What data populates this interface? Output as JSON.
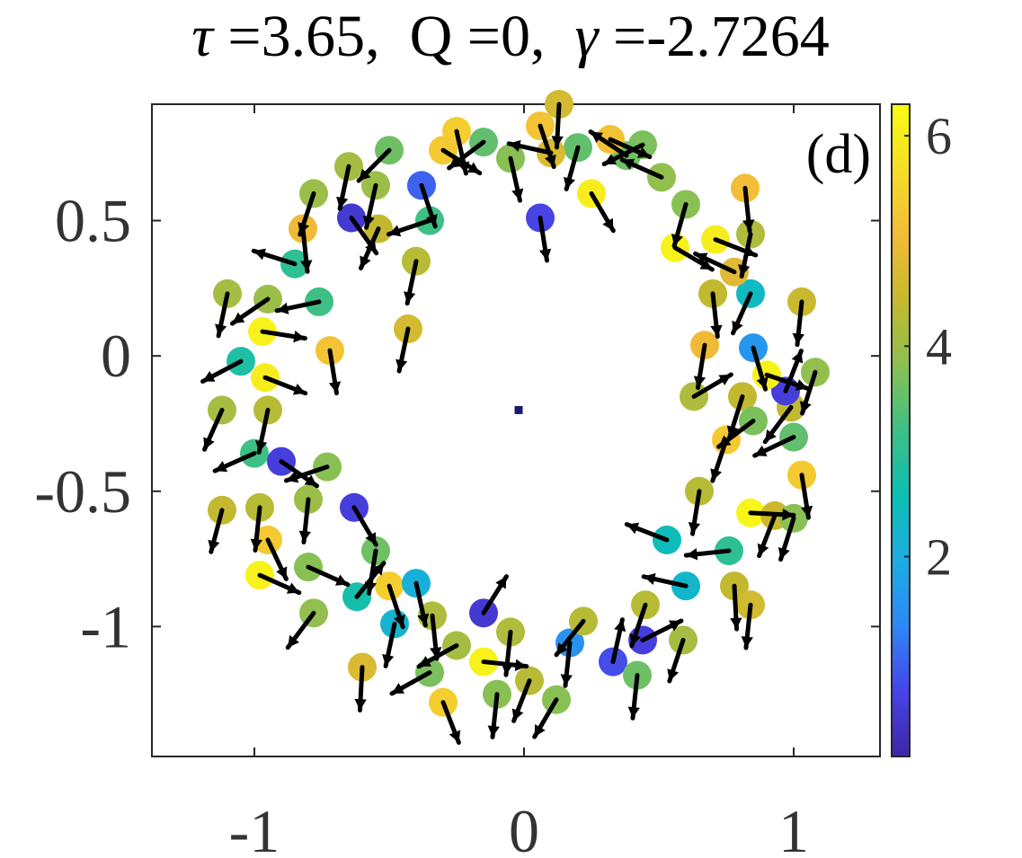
{
  "title": {
    "tau_symbol": "τ",
    "tau_text": " =3.65,  Q =0,  ",
    "gamma_symbol": "γ",
    "gamma_text": " =-2.7264"
  },
  "panel_label": "(d)",
  "colorbar": {
    "min": 0.1,
    "max": 6.3,
    "ticks": [
      2,
      4,
      6
    ],
    "tick_labels": [
      "2",
      "4",
      "6"
    ],
    "colormap": [
      "#3e26a8",
      "#4744e7",
      "#2e87f7",
      "#1cace2",
      "#0cbfb4",
      "#3ebf86",
      "#8ac052",
      "#c6b92e",
      "#f3bb38",
      "#f5de27",
      "#f9fb15"
    ]
  },
  "chart_data": {
    "type": "scatter",
    "title": "τ =3.65,  Q =0,  γ =-2.7264",
    "xlabel": "",
    "ylabel": "",
    "xlim": [
      -1.38,
      1.32
    ],
    "ylim": [
      -1.48,
      0.93
    ],
    "xticks": [
      -1,
      0,
      1
    ],
    "xtick_labels": [
      "-1",
      "0",
      "1"
    ],
    "yticks": [
      -1,
      -0.5,
      0,
      0.5
    ],
    "ytick_labels": [
      "-1",
      "-0.5",
      "0",
      "0.5"
    ],
    "grid": false,
    "color_scale": [
      0.1,
      6.3
    ],
    "arrow_scale": 0.16,
    "center_marker": {
      "x": -0.02,
      "y": -0.2
    },
    "series": [
      {
        "marker": "circle",
        "points": [
          {
            "x": 0.85,
            "y": 0.03,
            "c": 1.6,
            "u": 0.25,
            "v": -0.85
          },
          {
            "x": 0.84,
            "y": 0.23,
            "c": 2.4,
            "u": -0.4,
            "v": -0.9
          },
          {
            "x": 0.84,
            "y": 0.45,
            "c": 4.2,
            "u": -0.2,
            "v": -0.95
          },
          {
            "x": 0.82,
            "y": 0.62,
            "c": 5.1,
            "u": 0.1,
            "v": -0.95
          },
          {
            "x": 0.78,
            "y": 0.31,
            "c": 4.8,
            "u": -0.85,
            "v": 0.4
          },
          {
            "x": 0.71,
            "y": 0.43,
            "c": 6.0,
            "u": 0.9,
            "v": -0.35
          },
          {
            "x": 0.7,
            "y": 0.23,
            "c": 4.4,
            "u": 0.1,
            "v": -0.9
          },
          {
            "x": 0.67,
            "y": 0.04,
            "c": 5.0,
            "u": -0.15,
            "v": -0.95
          },
          {
            "x": 0.63,
            "y": -0.15,
            "c": 4.2,
            "u": 0.85,
            "v": 0.5
          },
          {
            "x": 0.56,
            "y": 0.4,
            "c": 6.1,
            "u": 0.85,
            "v": -0.5
          },
          {
            "x": 0.6,
            "y": 0.56,
            "c": 3.8,
            "u": -0.25,
            "v": -0.9
          },
          {
            "x": 0.51,
            "y": 0.66,
            "c": 3.9,
            "u": -0.9,
            "v": 0.4
          },
          {
            "x": 0.44,
            "y": 0.78,
            "c": 3.7,
            "u": -0.9,
            "v": -0.45
          },
          {
            "x": 0.38,
            "y": 0.74,
            "c": 3.6,
            "u": -0.9,
            "v": 0.6
          },
          {
            "x": 0.32,
            "y": 0.8,
            "c": 5.2,
            "u": 0.9,
            "v": -0.4
          },
          {
            "x": 0.2,
            "y": 0.77,
            "c": 3.5,
            "u": -0.25,
            "v": -0.9
          },
          {
            "x": 0.13,
            "y": 0.93,
            "c": 4.6,
            "u": -0.05,
            "v": -0.95
          },
          {
            "x": 0.06,
            "y": 0.85,
            "c": 5.2,
            "u": 0.3,
            "v": -0.9
          },
          {
            "x": 0.1,
            "y": 0.75,
            "c": 4.7,
            "u": -0.9,
            "v": 0.2
          },
          {
            "x": -0.05,
            "y": 0.73,
            "c": 3.8,
            "u": 0.2,
            "v": -0.9
          },
          {
            "x": 0.06,
            "y": 0.51,
            "c": 0.7,
            "u": 0.15,
            "v": -0.95
          },
          {
            "x": 0.25,
            "y": 0.6,
            "c": 6.0,
            "u": 0.5,
            "v": -0.85
          },
          {
            "x": -0.15,
            "y": 0.79,
            "c": 3.5,
            "u": -0.8,
            "v": -0.6
          },
          {
            "x": -0.25,
            "y": 0.83,
            "c": 5.4,
            "u": 0.2,
            "v": -0.9
          },
          {
            "x": -0.3,
            "y": 0.76,
            "c": 5.3,
            "u": 0.8,
            "v": -0.5
          },
          {
            "x": -0.38,
            "y": 0.63,
            "c": 1.0,
            "u": 0.3,
            "v": -0.9
          },
          {
            "x": -0.35,
            "y": 0.5,
            "c": 3.2,
            "u": -0.9,
            "v": -0.3
          },
          {
            "x": -0.5,
            "y": 0.76,
            "c": 3.6,
            "u": -0.7,
            "v": -0.7
          },
          {
            "x": -0.55,
            "y": 0.63,
            "c": 4.0,
            "u": -0.2,
            "v": -0.9
          },
          {
            "x": -0.65,
            "y": 0.7,
            "c": 4.1,
            "u": -0.2,
            "v": -0.95
          },
          {
            "x": -0.78,
            "y": 0.6,
            "c": 4.0,
            "u": -0.3,
            "v": -0.9
          },
          {
            "x": -0.64,
            "y": 0.51,
            "c": 0.5,
            "u": 0.6,
            "v": -0.85
          },
          {
            "x": -0.54,
            "y": 0.47,
            "c": 4.4,
            "u": -0.4,
            "v": -0.9
          },
          {
            "x": -0.82,
            "y": 0.47,
            "c": 5.0,
            "u": 0.1,
            "v": -0.95
          },
          {
            "x": -0.85,
            "y": 0.34,
            "c": 3.0,
            "u": -0.95,
            "v": 0.3
          },
          {
            "x": -1.1,
            "y": 0.23,
            "c": 4.1,
            "u": -0.2,
            "v": -0.95
          },
          {
            "x": -0.95,
            "y": 0.21,
            "c": 4.0,
            "u": -0.8,
            "v": -0.55
          },
          {
            "x": -0.76,
            "y": 0.2,
            "c": 3.2,
            "u": -0.95,
            "v": -0.2
          },
          {
            "x": -0.97,
            "y": 0.09,
            "c": 6.1,
            "u": 0.95,
            "v": -0.15
          },
          {
            "x": -1.05,
            "y": -0.02,
            "c": 2.8,
            "u": -0.95,
            "v": -0.5
          },
          {
            "x": -0.96,
            "y": -0.08,
            "c": 6.0,
            "u": 0.9,
            "v": -0.35
          },
          {
            "x": -1.12,
            "y": -0.2,
            "c": 4.1,
            "u": -0.4,
            "v": -0.9
          },
          {
            "x": -0.95,
            "y": -0.2,
            "c": 4.3,
            "u": -0.2,
            "v": -0.95
          },
          {
            "x": -1.0,
            "y": -0.36,
            "c": 3.2,
            "u": -0.9,
            "v": -0.4
          },
          {
            "x": -0.9,
            "y": -0.39,
            "c": 0.6,
            "u": 0.8,
            "v": -0.55
          },
          {
            "x": -0.73,
            "y": -0.41,
            "c": 3.8,
            "u": -0.9,
            "v": -0.3
          },
          {
            "x": -1.12,
            "y": -0.57,
            "c": 4.4,
            "u": -0.25,
            "v": -0.95
          },
          {
            "x": -0.98,
            "y": -0.56,
            "c": 4.3,
            "u": -0.1,
            "v": -0.95
          },
          {
            "x": -0.95,
            "y": -0.68,
            "c": 5.3,
            "u": 0.4,
            "v": -0.85
          },
          {
            "x": -0.98,
            "y": -0.81,
            "c": 6.1,
            "u": 0.9,
            "v": -0.4
          },
          {
            "x": -0.8,
            "y": -0.53,
            "c": 4.0,
            "u": -0.1,
            "v": -0.95
          },
          {
            "x": -0.8,
            "y": -0.78,
            "c": 3.8,
            "u": 0.9,
            "v": -0.4
          },
          {
            "x": -0.78,
            "y": -0.95,
            "c": 3.9,
            "u": -0.6,
            "v": -0.8
          },
          {
            "x": -0.63,
            "y": -0.56,
            "c": 0.6,
            "u": 0.5,
            "v": -0.85
          },
          {
            "x": -0.62,
            "y": -0.89,
            "c": 2.7,
            "u": 0.6,
            "v": 0.75
          },
          {
            "x": -0.55,
            "y": -0.72,
            "c": 3.6,
            "u": -0.15,
            "v": -0.95
          },
          {
            "x": -0.5,
            "y": -0.85,
            "c": 5.4,
            "u": 0.3,
            "v": -0.9
          },
          {
            "x": -0.48,
            "y": -0.99,
            "c": 2.2,
            "u": -0.2,
            "v": -0.95
          },
          {
            "x": -0.4,
            "y": -0.84,
            "c": 2.1,
            "u": 0.2,
            "v": -0.9
          },
          {
            "x": -0.34,
            "y": -0.96,
            "c": 4.2,
            "u": 0.1,
            "v": -0.95
          },
          {
            "x": -0.25,
            "y": -1.07,
            "c": 4.1,
            "u": -0.9,
            "v": -0.5
          },
          {
            "x": -0.35,
            "y": -1.17,
            "c": 3.7,
            "u": -0.9,
            "v": -0.5
          },
          {
            "x": -0.6,
            "y": -1.15,
            "c": 4.7,
            "u": -0.05,
            "v": -0.95
          },
          {
            "x": -0.3,
            "y": -1.28,
            "c": 5.4,
            "u": 0.35,
            "v": -0.9
          },
          {
            "x": -0.15,
            "y": -0.95,
            "c": 0.5,
            "u": 0.5,
            "v": 0.8
          },
          {
            "x": -0.15,
            "y": -1.13,
            "c": 6.1,
            "u": 0.95,
            "v": -0.1
          },
          {
            "x": -0.1,
            "y": -1.25,
            "c": 3.8,
            "u": -0.1,
            "v": -0.95
          },
          {
            "x": -0.05,
            "y": -1.02,
            "c": 4.2,
            "u": -0.1,
            "v": -0.95
          },
          {
            "x": 0.02,
            "y": -1.2,
            "c": 4.3,
            "u": -0.35,
            "v": -0.9
          },
          {
            "x": 0.12,
            "y": -1.27,
            "c": 3.8,
            "u": -0.5,
            "v": -0.85
          },
          {
            "x": 0.17,
            "y": -1.06,
            "c": 1.5,
            "u": -0.1,
            "v": -0.95
          },
          {
            "x": 0.33,
            "y": -1.13,
            "c": 0.8,
            "u": 0.2,
            "v": 0.9
          },
          {
            "x": 0.22,
            "y": -0.98,
            "c": 4.3,
            "u": -0.6,
            "v": -0.75
          },
          {
            "x": 0.44,
            "y": -1.05,
            "c": 0.6,
            "u": 0.9,
            "v": 0.45
          },
          {
            "x": 0.42,
            "y": -1.18,
            "c": 3.6,
            "u": -0.1,
            "v": -0.95
          },
          {
            "x": 0.59,
            "y": -1.05,
            "c": 4.1,
            "u": -0.3,
            "v": -0.9
          },
          {
            "x": 0.6,
            "y": -0.85,
            "c": 2.3,
            "u": -0.9,
            "v": 0.2
          },
          {
            "x": 0.45,
            "y": -0.92,
            "c": 4.3,
            "u": -0.3,
            "v": -0.9
          },
          {
            "x": 0.53,
            "y": -0.68,
            "c": 2.5,
            "u": -0.9,
            "v": 0.35
          },
          {
            "x": 0.65,
            "y": -0.5,
            "c": 4.3,
            "u": -0.15,
            "v": -0.95
          },
          {
            "x": 0.76,
            "y": -0.72,
            "c": 3.0,
            "u": -0.95,
            "v": -0.1
          },
          {
            "x": 0.78,
            "y": -0.85,
            "c": 4.4,
            "u": 0.05,
            "v": -0.95
          },
          {
            "x": 0.84,
            "y": -0.92,
            "c": 4.6,
            "u": -0.1,
            "v": -0.95
          },
          {
            "x": 0.84,
            "y": -0.58,
            "c": 6.2,
            "u": 0.95,
            "v": -0.05
          },
          {
            "x": 0.93,
            "y": -0.59,
            "c": 4.5,
            "u": -0.35,
            "v": -0.9
          },
          {
            "x": 1.0,
            "y": -0.6,
            "c": 3.8,
            "u": -0.3,
            "v": -0.95
          },
          {
            "x": 1.03,
            "y": -0.44,
            "c": 5.3,
            "u": 0.15,
            "v": -0.95
          },
          {
            "x": 1.0,
            "y": -0.3,
            "c": 3.5,
            "u": -0.95,
            "v": -0.45
          },
          {
            "x": 0.99,
            "y": -0.19,
            "c": 4.4,
            "u": -0.6,
            "v": -0.8
          },
          {
            "x": 0.97,
            "y": -0.13,
            "c": 0.6,
            "u": 0.35,
            "v": 0.9
          },
          {
            "x": 0.9,
            "y": -0.07,
            "c": 6.1,
            "u": 0.9,
            "v": -0.3
          },
          {
            "x": 1.08,
            "y": -0.06,
            "c": 3.9,
            "u": -0.3,
            "v": -0.95
          },
          {
            "x": 1.03,
            "y": 0.2,
            "c": 4.5,
            "u": -0.1,
            "v": -0.95
          },
          {
            "x": 0.81,
            "y": -0.15,
            "c": 4.4,
            "u": -0.3,
            "v": -0.95
          },
          {
            "x": 0.85,
            "y": -0.24,
            "c": 3.7,
            "u": -0.8,
            "v": -0.6
          },
          {
            "x": 0.75,
            "y": -0.31,
            "c": 5.3,
            "u": -0.3,
            "v": -0.9
          },
          {
            "x": -0.4,
            "y": 0.35,
            "c": 4.3,
            "u": -0.2,
            "v": -0.95
          },
          {
            "x": -0.43,
            "y": 0.1,
            "c": 4.6,
            "u": -0.2,
            "v": -0.95
          },
          {
            "x": -0.72,
            "y": 0.02,
            "c": 5.2,
            "u": 0.15,
            "v": -0.95
          }
        ]
      }
    ]
  }
}
